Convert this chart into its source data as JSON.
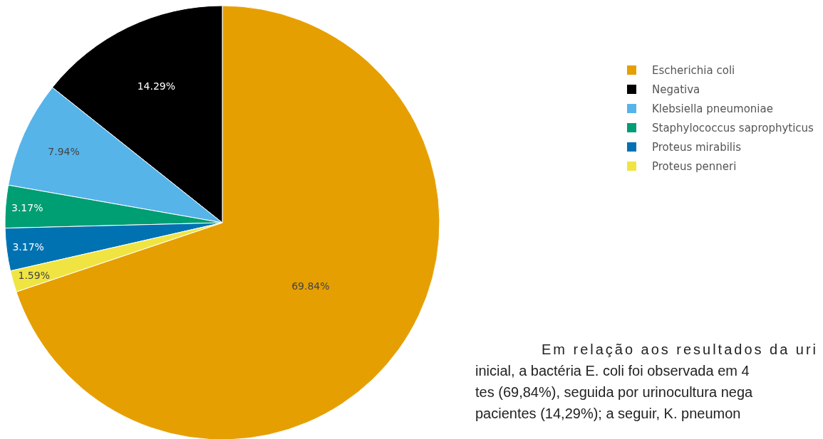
{
  "chart_data": {
    "type": "pie",
    "categories": [
      "Escherichia coli",
      "Negativa",
      "Klebsiella pneumoniae",
      "Staphylococcus saprophyticus",
      "Proteus mirabilis",
      "Proteus penneri"
    ],
    "values": [
      69.84,
      14.29,
      7.94,
      3.17,
      3.17,
      1.59
    ],
    "colors": [
      "#e69f00",
      "#000000",
      "#56b4e9",
      "#009e73",
      "#0072b2",
      "#f0e442"
    ],
    "value_labels": [
      "69.84%",
      "14.29%",
      "7.94%",
      "3.17%",
      "3.17%",
      "1.59%"
    ],
    "legend": "right",
    "annotations": [
      "Em relação aos resultados da uri",
      "inicial, a bactéria E. coli foi observada em 4",
      "tes (69,84%), seguida por urinocultura nega",
      "pacientes (14,29%); a seguir, K. pneumon"
    ]
  }
}
